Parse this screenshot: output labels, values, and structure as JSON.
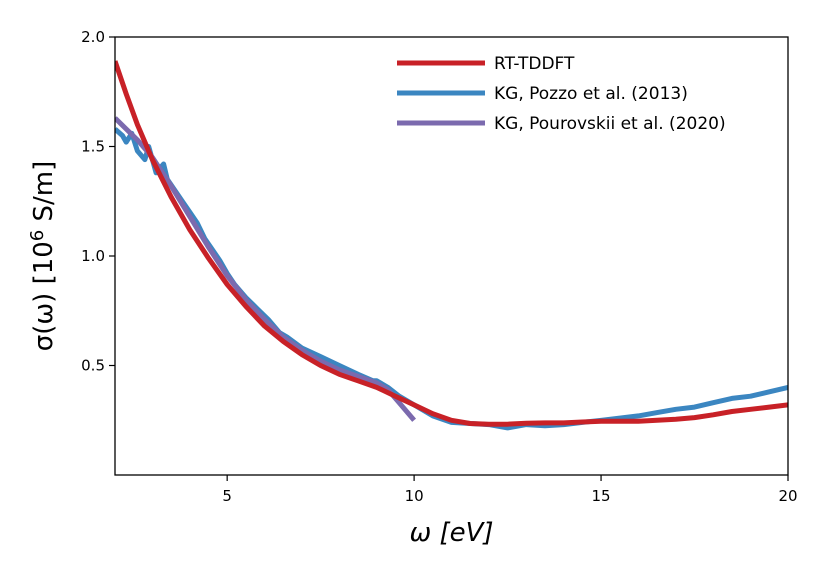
{
  "chart_data": {
    "type": "line",
    "title": "",
    "xlabel": "ω [eV]",
    "ylabel": "σ(ω) [10⁶ S/m]",
    "ylabel_parts": {
      "pre": "σ(ω) [10",
      "sup": "6",
      "post": " S/m]"
    },
    "xlim": [
      2,
      20
    ],
    "ylim": [
      0.0,
      2.0
    ],
    "xticks": [
      5,
      10,
      15,
      20
    ],
    "yticks": [
      0.5,
      1.0,
      1.5,
      2.0
    ],
    "xtick_labels": [
      "5",
      "10",
      "15",
      "20"
    ],
    "ytick_labels": [
      "0.5",
      "1.0",
      "1.5",
      "2.0"
    ],
    "legend_position": "top-right",
    "series": [
      {
        "name": "RT-TDDFT",
        "color": "#c82127",
        "points": [
          [
            2.0,
            1.89
          ],
          [
            2.3,
            1.74
          ],
          [
            2.6,
            1.6
          ],
          [
            3.0,
            1.44
          ],
          [
            3.5,
            1.27
          ],
          [
            4.0,
            1.12
          ],
          [
            4.5,
            0.99
          ],
          [
            5.0,
            0.87
          ],
          [
            5.5,
            0.77
          ],
          [
            6.0,
            0.68
          ],
          [
            6.5,
            0.61
          ],
          [
            7.0,
            0.55
          ],
          [
            7.5,
            0.5
          ],
          [
            8.0,
            0.46
          ],
          [
            8.5,
            0.43
          ],
          [
            9.0,
            0.4
          ],
          [
            9.5,
            0.36
          ],
          [
            10.0,
            0.32
          ],
          [
            10.5,
            0.28
          ],
          [
            11.0,
            0.25
          ],
          [
            11.5,
            0.235
          ],
          [
            12.0,
            0.232
          ],
          [
            12.5,
            0.232
          ],
          [
            13.0,
            0.236
          ],
          [
            13.5,
            0.238
          ],
          [
            14.0,
            0.238
          ],
          [
            14.5,
            0.242
          ],
          [
            15.0,
            0.245
          ],
          [
            15.5,
            0.245
          ],
          [
            16.0,
            0.245
          ],
          [
            16.5,
            0.25
          ],
          [
            17.0,
            0.255
          ],
          [
            17.5,
            0.262
          ],
          [
            18.0,
            0.275
          ],
          [
            18.5,
            0.29
          ],
          [
            19.0,
            0.3
          ],
          [
            19.5,
            0.31
          ],
          [
            20.0,
            0.32
          ]
        ]
      },
      {
        "name": "KG, Pozzo et al. (2013)",
        "color": "#3b86c1",
        "points": [
          [
            2.0,
            1.58
          ],
          [
            2.2,
            1.55
          ],
          [
            2.3,
            1.52
          ],
          [
            2.45,
            1.56
          ],
          [
            2.6,
            1.48
          ],
          [
            2.8,
            1.44
          ],
          [
            2.9,
            1.5
          ],
          [
            3.1,
            1.38
          ],
          [
            3.3,
            1.42
          ],
          [
            3.4,
            1.35
          ],
          [
            3.6,
            1.3
          ],
          [
            3.8,
            1.25
          ],
          [
            4.0,
            1.2
          ],
          [
            4.2,
            1.15
          ],
          [
            4.4,
            1.08
          ],
          [
            4.6,
            1.03
          ],
          [
            4.8,
            0.98
          ],
          [
            5.0,
            0.92
          ],
          [
            5.2,
            0.87
          ],
          [
            5.5,
            0.81
          ],
          [
            5.8,
            0.76
          ],
          [
            6.1,
            0.71
          ],
          [
            6.4,
            0.65
          ],
          [
            6.6,
            0.63
          ],
          [
            7.0,
            0.58
          ],
          [
            7.5,
            0.54
          ],
          [
            8.0,
            0.5
          ],
          [
            8.5,
            0.46
          ],
          [
            8.9,
            0.43
          ],
          [
            9.0,
            0.43
          ],
          [
            9.3,
            0.4
          ],
          [
            9.6,
            0.36
          ],
          [
            10.0,
            0.32
          ],
          [
            10.5,
            0.27
          ],
          [
            11.0,
            0.24
          ],
          [
            11.5,
            0.235
          ],
          [
            12.0,
            0.23
          ],
          [
            12.5,
            0.215
          ],
          [
            13.0,
            0.23
          ],
          [
            13.5,
            0.225
          ],
          [
            14.0,
            0.23
          ],
          [
            14.5,
            0.24
          ],
          [
            15.0,
            0.25
          ],
          [
            15.5,
            0.26
          ],
          [
            16.0,
            0.27
          ],
          [
            16.5,
            0.285
          ],
          [
            17.0,
            0.3
          ],
          [
            17.5,
            0.31
          ],
          [
            18.0,
            0.33
          ],
          [
            18.5,
            0.35
          ],
          [
            19.0,
            0.36
          ],
          [
            19.5,
            0.38
          ],
          [
            20.0,
            0.4
          ]
        ]
      },
      {
        "name": "KG, Pourovskii et al. (2020)",
        "color": "#7b6aae",
        "points": [
          [
            2.0,
            1.63
          ],
          [
            2.3,
            1.58
          ],
          [
            2.6,
            1.53
          ],
          [
            3.0,
            1.45
          ],
          [
            3.5,
            1.32
          ],
          [
            4.0,
            1.18
          ],
          [
            4.5,
            1.04
          ],
          [
            5.0,
            0.91
          ],
          [
            5.5,
            0.8
          ],
          [
            6.0,
            0.71
          ],
          [
            6.5,
            0.63
          ],
          [
            7.0,
            0.57
          ],
          [
            7.5,
            0.52
          ],
          [
            8.0,
            0.48
          ],
          [
            8.5,
            0.45
          ],
          [
            9.0,
            0.42
          ],
          [
            9.3,
            0.39
          ],
          [
            9.6,
            0.33
          ],
          [
            10.0,
            0.25
          ]
        ]
      }
    ]
  }
}
